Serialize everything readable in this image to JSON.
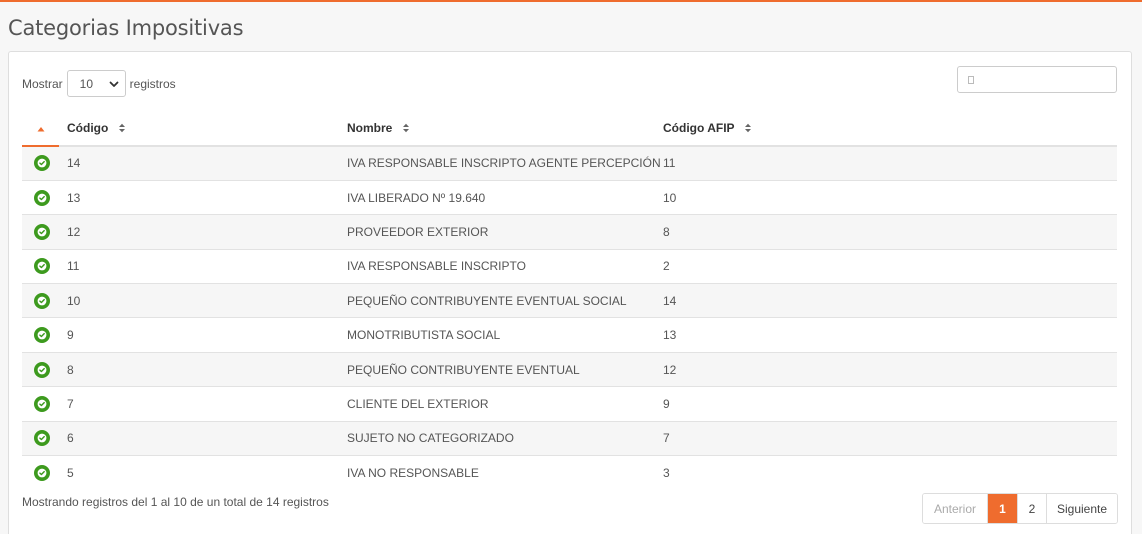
{
  "page": {
    "title": "Categorias Impositivas"
  },
  "length_menu": {
    "prefix": "Mostrar",
    "selected": "10",
    "suffix": "registros"
  },
  "search": {
    "value": "",
    "placeholder": ""
  },
  "table": {
    "columns": {
      "codigo": "Código",
      "nombre": "Nombre",
      "afip": "Código AFIP"
    },
    "rows": [
      {
        "codigo": "14",
        "nombre": "IVA RESPONSABLE INSCRIPTO AGENTE PERCEPCIÓN",
        "afip": "11"
      },
      {
        "codigo": "13",
        "nombre": "IVA LIBERADO Nº 19.640",
        "afip": "10"
      },
      {
        "codigo": "12",
        "nombre": "PROVEEDOR EXTERIOR",
        "afip": "8"
      },
      {
        "codigo": "11",
        "nombre": "IVA RESPONSABLE INSCRIPTO",
        "afip": "2"
      },
      {
        "codigo": "10",
        "nombre": "PEQUEÑO CONTRIBUYENTE EVENTUAL SOCIAL",
        "afip": "14"
      },
      {
        "codigo": "9",
        "nombre": "MONOTRIBUTISTA SOCIAL",
        "afip": "13"
      },
      {
        "codigo": "8",
        "nombre": "PEQUEÑO CONTRIBUYENTE EVENTUAL",
        "afip": "12"
      },
      {
        "codigo": "7",
        "nombre": "CLIENTE DEL EXTERIOR",
        "afip": "9"
      },
      {
        "codigo": "6",
        "nombre": "SUJETO NO CATEGORIZADO",
        "afip": "7"
      },
      {
        "codigo": "5",
        "nombre": "IVA NO RESPONSABLE",
        "afip": "3"
      }
    ]
  },
  "footer": {
    "info": "Mostrando registros del 1 al 10 de un total de 14 registros",
    "pagination": {
      "prev": "Anterior",
      "pages": [
        "1",
        "2"
      ],
      "current": "1",
      "next": "Siguiente"
    }
  },
  "colors": {
    "accent": "#ef6c2e",
    "status_active": "#3d9a1e"
  },
  "icons": {
    "status": "check-circle-icon",
    "sort": "sort-icon",
    "sort_asc": "sort-asc-icon",
    "dropdown": "chevron-down-icon",
    "search": "search-icon"
  }
}
